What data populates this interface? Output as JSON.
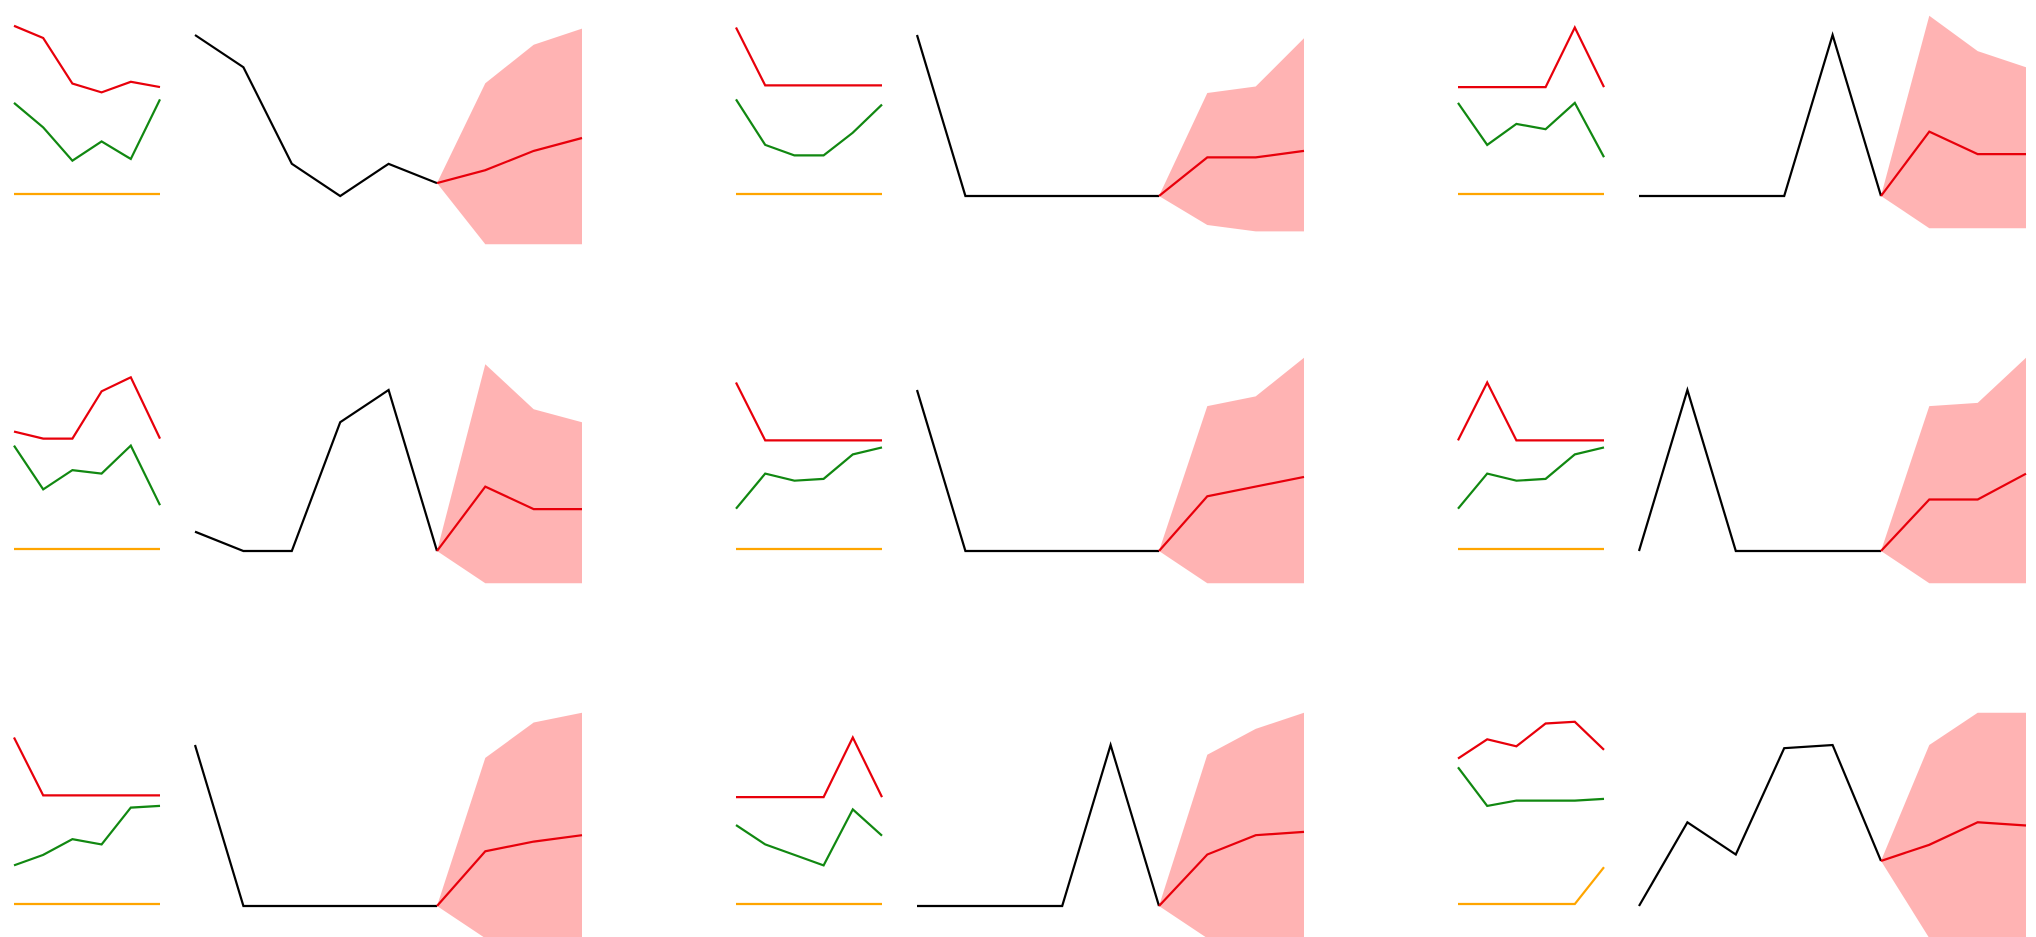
{
  "colors": {
    "history": "#000000",
    "forecast": "#e8000b",
    "band": "#ff9999",
    "covariate_red": "#e8000b",
    "covariate_green": "#118811",
    "covariate_orange": "#ffa500"
  },
  "chart_data": [
    {
      "type": "line",
      "covariates": [
        {
          "color": "red",
          "values": [
            9.6,
            8.9,
            6.3,
            5.8,
            6.4,
            6.1
          ]
        },
        {
          "color": "green",
          "values": [
            5.2,
            3.8,
            1.9,
            3.0,
            2.0,
            5.4
          ]
        },
        {
          "color": "orange",
          "values": [
            0,
            0,
            0,
            0,
            0,
            0
          ]
        }
      ],
      "history": [
        5.0,
        4.0,
        1.0,
        0.0,
        1.0,
        0.4
      ],
      "forecast": {
        "median": [
          0.4,
          0.8,
          1.4,
          1.8
        ],
        "lower": [
          0.4,
          -1.5,
          -1.5,
          -1.5
        ],
        "upper": [
          0.4,
          3.5,
          4.7,
          5.2
        ]
      }
    },
    {
      "type": "line",
      "covariates": [
        {
          "color": "red",
          "values": [
            9.5,
            6.2,
            6.2,
            6.2,
            6.2,
            6.2
          ]
        },
        {
          "color": "green",
          "values": [
            5.4,
            2.8,
            2.2,
            2.2,
            3.5,
            5.1
          ]
        },
        {
          "color": "orange",
          "values": [
            0,
            0,
            0,
            0,
            0,
            0
          ]
        }
      ],
      "history": [
        5.0,
        0.0,
        0.0,
        0.0,
        0.0,
        0.0
      ],
      "forecast": {
        "median": [
          0.0,
          1.2,
          1.2,
          1.4
        ],
        "lower": [
          0.0,
          -0.9,
          -1.1,
          -1.1
        ],
        "upper": [
          0.0,
          3.2,
          3.4,
          4.9
        ]
      }
    },
    {
      "type": "line",
      "covariates": [
        {
          "color": "red",
          "values": [
            6.1,
            6.1,
            6.1,
            6.1,
            9.5,
            6.1
          ]
        },
        {
          "color": "green",
          "values": [
            5.2,
            2.8,
            4.0,
            3.7,
            5.2,
            2.1
          ]
        },
        {
          "color": "orange",
          "values": [
            0,
            0,
            0,
            0,
            0,
            0
          ]
        }
      ],
      "history": [
        0.0,
        0.0,
        0.0,
        0.0,
        5.0,
        0.0
      ],
      "forecast": {
        "median": [
          0.0,
          2.0,
          1.3,
          1.3
        ],
        "lower": [
          0.0,
          -1.0,
          -1.0,
          -1.0
        ],
        "upper": [
          0.0,
          5.6,
          4.5,
          4.0
        ]
      }
    },
    {
      "type": "line",
      "covariates": [
        {
          "color": "red",
          "values": [
            6.7,
            6.3,
            6.3,
            9.0,
            9.8,
            6.3
          ]
        },
        {
          "color": "green",
          "values": [
            5.9,
            3.4,
            4.5,
            4.3,
            5.9,
            2.5
          ]
        },
        {
          "color": "orange",
          "values": [
            0,
            0,
            0,
            0,
            0,
            0
          ]
        }
      ],
      "history": [
        0.6,
        0.0,
        0.0,
        4.0,
        5.0,
        0.0
      ],
      "forecast": {
        "median": [
          0.0,
          2.0,
          1.3,
          1.3
        ],
        "lower": [
          0.0,
          -1.0,
          -1.0,
          -1.0
        ],
        "upper": [
          0.0,
          5.8,
          4.4,
          4.0
        ]
      }
    },
    {
      "type": "line",
      "covariates": [
        {
          "color": "red",
          "values": [
            9.5,
            6.2,
            6.2,
            6.2,
            6.2,
            6.2
          ]
        },
        {
          "color": "green",
          "values": [
            2.3,
            4.3,
            3.9,
            4.0,
            5.4,
            5.8
          ]
        },
        {
          "color": "orange",
          "values": [
            0,
            0,
            0,
            0,
            0,
            0
          ]
        }
      ],
      "history": [
        5.0,
        0.0,
        0.0,
        0.0,
        0.0,
        0.0
      ],
      "forecast": {
        "median": [
          0.0,
          1.7,
          2.0,
          2.3
        ],
        "lower": [
          0.0,
          -1.0,
          -1.0,
          -1.0
        ],
        "upper": [
          0.0,
          4.5,
          4.8,
          6.0
        ]
      }
    },
    {
      "type": "line",
      "covariates": [
        {
          "color": "red",
          "values": [
            6.2,
            9.5,
            6.2,
            6.2,
            6.2,
            6.2
          ]
        },
        {
          "color": "green",
          "values": [
            2.3,
            4.3,
            3.9,
            4.0,
            5.4,
            5.8
          ]
        },
        {
          "color": "orange",
          "values": [
            0,
            0,
            0,
            0,
            0,
            0
          ]
        }
      ],
      "history": [
        0.0,
        5.0,
        0.0,
        0.0,
        0.0,
        0.0
      ],
      "forecast": {
        "median": [
          0.0,
          1.6,
          1.6,
          2.4
        ],
        "lower": [
          0.0,
          -1.0,
          -1.0,
          -1.0
        ],
        "upper": [
          0.0,
          4.5,
          4.6,
          6.0
        ]
      }
    },
    {
      "type": "line",
      "covariates": [
        {
          "color": "red",
          "values": [
            9.5,
            6.2,
            6.2,
            6.2,
            6.2,
            6.2
          ]
        },
        {
          "color": "green",
          "values": [
            2.2,
            2.8,
            3.7,
            3.4,
            5.5,
            5.6
          ]
        },
        {
          "color": "orange",
          "values": [
            0,
            0,
            0,
            0,
            0,
            0
          ]
        }
      ],
      "history": [
        5.0,
        0.0,
        0.0,
        0.0,
        0.0,
        0.0
      ],
      "forecast": {
        "median": [
          0.0,
          1.7,
          2.0,
          2.2
        ],
        "lower": [
          0.0,
          -1.0,
          -1.0,
          -1.0
        ],
        "upper": [
          0.0,
          4.6,
          5.7,
          6.0
        ]
      }
    },
    {
      "type": "line",
      "covariates": [
        {
          "color": "red",
          "values": [
            6.1,
            6.1,
            6.1,
            6.1,
            9.5,
            6.1
          ]
        },
        {
          "color": "green",
          "values": [
            4.5,
            3.4,
            2.8,
            2.2,
            5.4,
            3.9
          ]
        },
        {
          "color": "orange",
          "values": [
            0,
            0,
            0,
            0,
            0,
            0
          ]
        }
      ],
      "history": [
        0.0,
        0.0,
        0.0,
        0.0,
        5.0,
        0.0
      ],
      "forecast": {
        "median": [
          0.0,
          1.6,
          2.2,
          2.3
        ],
        "lower": [
          0.0,
          -1.0,
          -1.0,
          -1.0
        ],
        "upper": [
          0.0,
          4.7,
          5.5,
          6.0
        ]
      }
    },
    {
      "type": "line",
      "covariates": [
        {
          "color": "red",
          "values": [
            8.3,
            9.4,
            9.0,
            10.3,
            10.4,
            8.8
          ]
        },
        {
          "color": "green",
          "values": [
            7.8,
            5.6,
            5.9,
            5.9,
            5.9,
            6.0
          ]
        },
        {
          "color": "orange",
          "values": [
            0,
            0,
            0,
            0,
            0,
            2.1
          ]
        }
      ],
      "history": [
        0.0,
        2.6,
        1.6,
        4.9,
        5.0,
        1.4
      ],
      "forecast": {
        "median": [
          1.4,
          1.9,
          2.6,
          2.5
        ],
        "lower": [
          1.4,
          -1.0,
          -1.0,
          -1.0
        ],
        "upper": [
          1.4,
          5.0,
          6.0,
          6.0
        ]
      }
    }
  ]
}
